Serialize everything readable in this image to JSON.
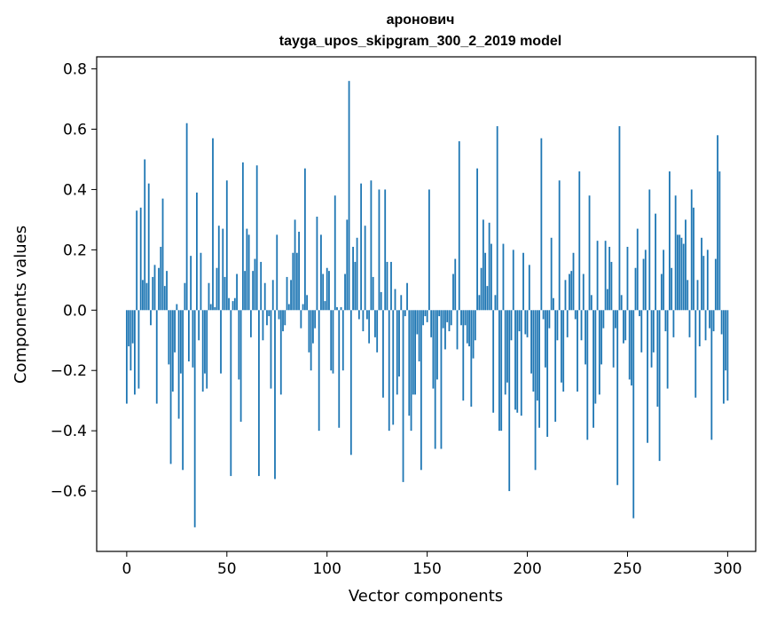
{
  "chart_data": {
    "type": "bar",
    "title_line1": "аронович",
    "title_line2": "tayga_upos_skipgram_300_2_2019 model",
    "xlabel": "Vector components",
    "ylabel": "Components values",
    "xlim": [
      -15,
      314
    ],
    "ylim": [
      -0.8,
      0.84
    ],
    "xticks": [
      0,
      50,
      100,
      150,
      200,
      250,
      300
    ],
    "xtick_labels": [
      "0",
      "50",
      "100",
      "150",
      "200",
      "250",
      "300"
    ],
    "yticks": [
      -0.6,
      -0.4,
      -0.2,
      0.0,
      0.2,
      0.4,
      0.6,
      0.8
    ],
    "ytick_labels": [
      "−0.6",
      "−0.4",
      "−0.2",
      "0.0",
      "0.2",
      "0.4",
      "0.6",
      "0.8"
    ],
    "bar_color": "#1f77b4",
    "grid": false,
    "values": [
      -0.31,
      -0.12,
      -0.2,
      -0.11,
      -0.28,
      0.33,
      -0.26,
      0.34,
      0.1,
      0.5,
      0.09,
      0.42,
      -0.05,
      0.11,
      0.15,
      -0.31,
      0.14,
      0.21,
      0.37,
      0.08,
      0.13,
      -0.18,
      -0.51,
      -0.27,
      -0.14,
      0.02,
      -0.36,
      -0.21,
      -0.53,
      0.09,
      0.62,
      -0.17,
      0.18,
      -0.19,
      -0.72,
      0.39,
      -0.1,
      0.19,
      -0.27,
      -0.21,
      -0.26,
      0.09,
      0.02,
      0.57,
      0.01,
      0.14,
      0.28,
      -0.21,
      0.27,
      0.11,
      0.43,
      0.04,
      -0.55,
      0.03,
      0.04,
      0.12,
      -0.23,
      -0.37,
      0.49,
      0.13,
      0.27,
      0.25,
      -0.09,
      0.13,
      0.17,
      0.48,
      -0.55,
      0.16,
      -0.1,
      0.09,
      -0.05,
      -0.02,
      -0.26,
      0.1,
      -0.56,
      0.25,
      -0.03,
      -0.28,
      -0.07,
      -0.05,
      0.11,
      0.02,
      0.1,
      0.19,
      0.3,
      0.19,
      0.26,
      -0.06,
      0.02,
      0.47,
      0.05,
      -0.14,
      -0.2,
      -0.11,
      -0.06,
      0.31,
      -0.4,
      0.25,
      0.12,
      0.03,
      0.14,
      0.13,
      -0.2,
      -0.21,
      0.38,
      0.01,
      -0.39,
      0.01,
      -0.2,
      0.12,
      0.3,
      0.76,
      -0.48,
      0.21,
      0.16,
      0.24,
      -0.03,
      0.42,
      -0.07,
      0.28,
      -0.03,
      -0.11,
      0.43,
      0.11,
      -0.09,
      -0.14,
      0.4,
      0.06,
      -0.29,
      0.4,
      0.16,
      -0.4,
      0.16,
      -0.38,
      0.07,
      -0.28,
      -0.22,
      0.05,
      -0.57,
      -0.02,
      0.09,
      -0.35,
      -0.4,
      -0.28,
      -0.28,
      -0.08,
      -0.17,
      -0.53,
      -0.05,
      -0.02,
      -0.04,
      0.4,
      -0.09,
      -0.26,
      -0.46,
      -0.23,
      -0.02,
      -0.46,
      -0.06,
      -0.13,
      -0.04,
      -0.07,
      -0.05,
      0.12,
      0.17,
      -0.13,
      0.56,
      -0.05,
      -0.3,
      -0.05,
      -0.11,
      -0.12,
      -0.32,
      -0.16,
      -0.1,
      0.47,
      0.05,
      0.14,
      0.3,
      0.19,
      0.08,
      0.29,
      0.22,
      -0.34,
      0.05,
      0.61,
      -0.4,
      -0.4,
      0.22,
      -0.28,
      -0.24,
      -0.6,
      -0.1,
      0.2,
      -0.33,
      -0.34,
      -0.07,
      -0.35,
      0.19,
      -0.08,
      -0.09,
      0.15,
      -0.21,
      -0.27,
      -0.53,
      -0.3,
      -0.39,
      0.57,
      -0.03,
      -0.19,
      -0.42,
      -0.06,
      0.24,
      0.04,
      -0.37,
      -0.1,
      0.43,
      -0.24,
      -0.27,
      0.1,
      -0.09,
      0.12,
      0.13,
      0.19,
      -0.03,
      -0.27,
      0.46,
      -0.1,
      0.12,
      -0.18,
      -0.43,
      0.38,
      0.05,
      -0.39,
      -0.31,
      0.23,
      -0.28,
      -0.18,
      -0.06,
      0.23,
      0.07,
      0.21,
      0.16,
      -0.19,
      -0.06,
      -0.58,
      0.61,
      0.05,
      -0.11,
      -0.1,
      0.21,
      -0.23,
      -0.25,
      -0.69,
      0.14,
      0.27,
      -0.02,
      -0.14,
      0.17,
      0.2,
      -0.44,
      0.4,
      -0.19,
      -0.14,
      0.32,
      -0.32,
      -0.5,
      0.12,
      0.2,
      -0.07,
      -0.26,
      0.46,
      0.14,
      -0.09,
      0.38,
      0.25,
      0.25,
      0.24,
      0.22,
      0.3,
      0.1,
      -0.09,
      0.4,
      0.34,
      -0.29,
      0.1,
      -0.12,
      0.24,
      0.18,
      -0.1,
      0.2,
      -0.06,
      -0.43,
      -0.07,
      0.17,
      0.58,
      0.46,
      -0.08,
      -0.31,
      -0.2,
      -0.3,
      0.0
    ]
  }
}
